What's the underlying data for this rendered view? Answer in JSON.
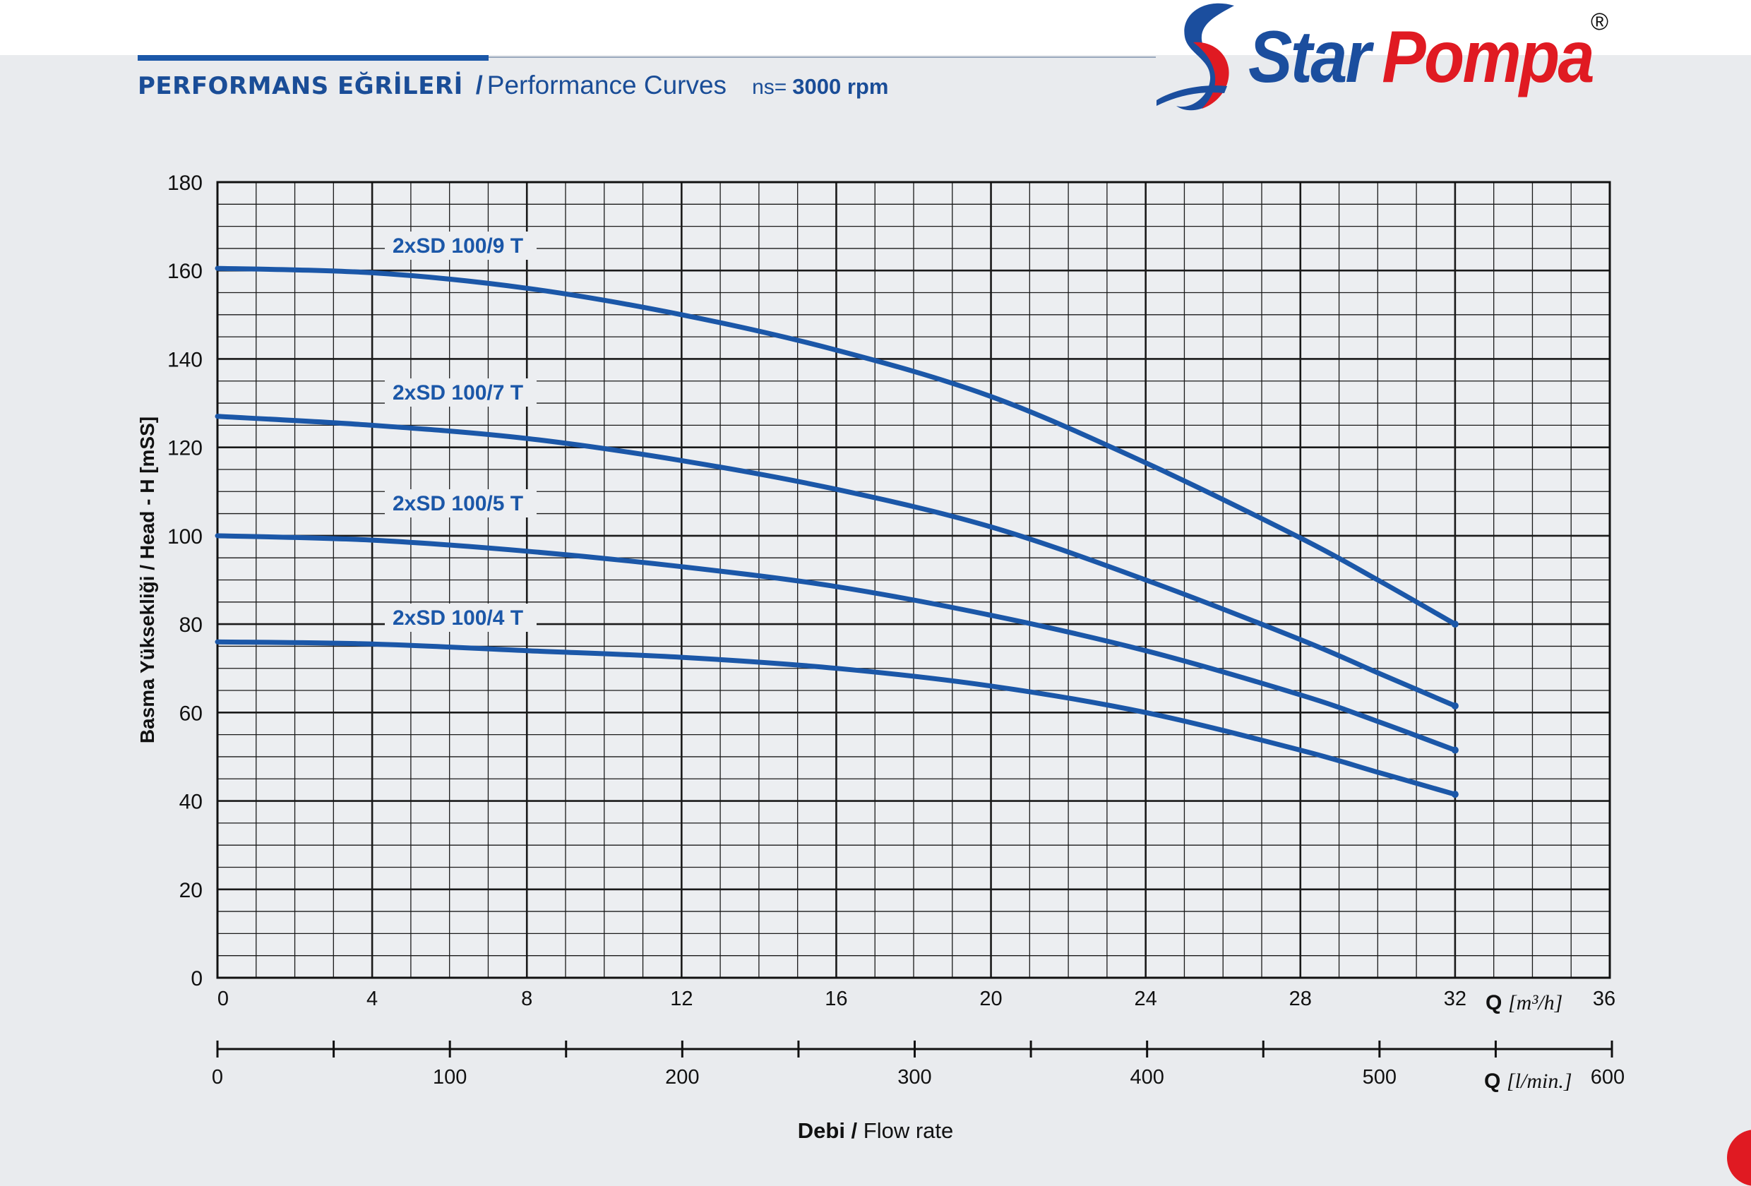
{
  "header": {
    "title_tr": "PERFORMANS EĞRİLERİ",
    "title_slash": "/",
    "title_en": "Performance Curves",
    "speed_label": "ns=",
    "speed_value": "3000 rpm"
  },
  "brand": {
    "word1": "Star",
    "word2": "Pompa",
    "registered": "®",
    "color_blue": "#1b4e9e",
    "color_red": "#e01a22"
  },
  "chart_data": {
    "type": "line",
    "title": "",
    "ylabel": "Basma Yüksekliği / Head - H [mSS]",
    "xlabel_bold": "Debi /",
    "xlabel": "Flow rate",
    "x_axis_m3h": {
      "label_q": "Q",
      "unit": "[m³/h]",
      "range": [
        0,
        36
      ],
      "ticks": [
        "0",
        "4",
        "8",
        "12",
        "16",
        "20",
        "24",
        "28",
        "32",
        "36"
      ]
    },
    "x_axis_lmin": {
      "label_q": "Q",
      "unit": "[l/min.]",
      "range": [
        0,
        600
      ],
      "ticks": [
        "0",
        "100",
        "200",
        "300",
        "400",
        "500",
        "600"
      ]
    },
    "y_axis": {
      "range": [
        0,
        180
      ],
      "ticks": [
        "0",
        "20",
        "40",
        "60",
        "80",
        "100",
        "120",
        "140",
        "160",
        "180"
      ]
    },
    "grid": true,
    "line_color": "#1b57a8",
    "series": [
      {
        "name": "2xSD 100/9 T",
        "points": [
          [
            0,
            160.5
          ],
          [
            4,
            159.5
          ],
          [
            8,
            156
          ],
          [
            12,
            150
          ],
          [
            16,
            142
          ],
          [
            20,
            131.5
          ],
          [
            24,
            116.5
          ],
          [
            28,
            99.5
          ],
          [
            30,
            90
          ],
          [
            32,
            80
          ]
        ]
      },
      {
        "name": "2xSD 100/7 T",
        "points": [
          [
            0,
            127
          ],
          [
            4,
            125
          ],
          [
            8,
            122
          ],
          [
            12,
            117
          ],
          [
            16,
            110.5
          ],
          [
            20,
            102
          ],
          [
            24,
            90
          ],
          [
            28,
            76.5
          ],
          [
            30,
            69
          ],
          [
            32,
            61.5
          ]
        ]
      },
      {
        "name": "2xSD 100/5 T",
        "points": [
          [
            0,
            100
          ],
          [
            4,
            99
          ],
          [
            8,
            96.5
          ],
          [
            12,
            93
          ],
          [
            16,
            88.5
          ],
          [
            20,
            82
          ],
          [
            24,
            74
          ],
          [
            28,
            64
          ],
          [
            30,
            58
          ],
          [
            32,
            51.5
          ]
        ]
      },
      {
        "name": "2xSD 100/4 T",
        "points": [
          [
            0,
            76
          ],
          [
            4,
            75.5
          ],
          [
            8,
            74
          ],
          [
            12,
            72.5
          ],
          [
            16,
            70
          ],
          [
            20,
            66
          ],
          [
            24,
            60
          ],
          [
            28,
            51.5
          ],
          [
            30,
            46.5
          ],
          [
            32,
            41.5
          ]
        ]
      }
    ]
  }
}
